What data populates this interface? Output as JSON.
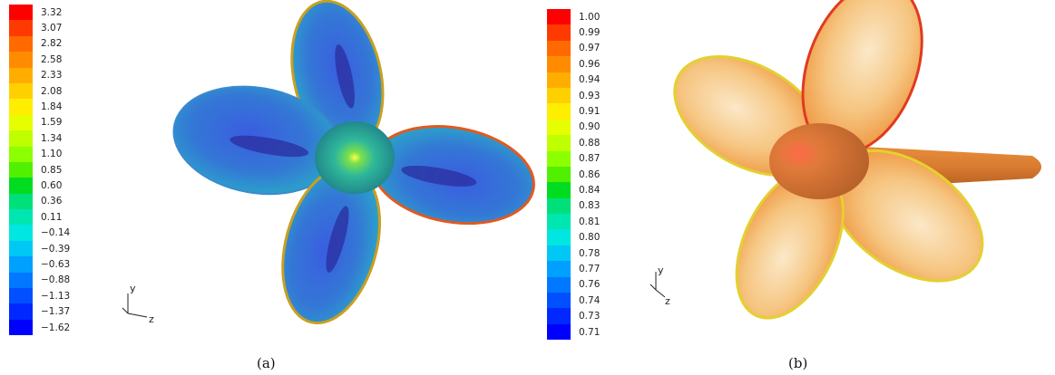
{
  "panels": [
    {
      "caption": "(a)",
      "axis": {
        "y": "y",
        "z": "z"
      },
      "colorbar": [
        {
          "label": "3.32",
          "color": "#ff0000"
        },
        {
          "label": "3.07",
          "color": "#ff3a00"
        },
        {
          "label": "2.82",
          "color": "#ff6a00"
        },
        {
          "label": "2.58",
          "color": "#ff8c00"
        },
        {
          "label": "2.33",
          "color": "#ffae00"
        },
        {
          "label": "2.08",
          "color": "#ffd000"
        },
        {
          "label": "1.84",
          "color": "#ffee00"
        },
        {
          "label": "1.59",
          "color": "#e6ff00"
        },
        {
          "label": "1.34",
          "color": "#bfff00"
        },
        {
          "label": "1.10",
          "color": "#8cff00"
        },
        {
          "label": "0.85",
          "color": "#50f000"
        },
        {
          "label": "0.60",
          "color": "#00dd20"
        },
        {
          "label": "0.36",
          "color": "#00e07a"
        },
        {
          "label": "0.11",
          "color": "#00e6b0"
        },
        {
          "label": "−0.14",
          "color": "#00e6e0"
        },
        {
          "label": "−0.39",
          "color": "#00c8f5"
        },
        {
          "label": "−0.63",
          "color": "#00a0ff"
        },
        {
          "label": "−0.88",
          "color": "#0078ff"
        },
        {
          "label": "−1.13",
          "color": "#0050ff"
        },
        {
          "label": "−1.37",
          "color": "#0028ff"
        },
        {
          "label": "−1.62",
          "color": "#0000ff"
        }
      ]
    },
    {
      "caption": "(b)",
      "axis": {
        "y": "y",
        "z": "z"
      },
      "colorbar": [
        {
          "label": "1.00",
          "color": "#ff0000"
        },
        {
          "label": "0.99",
          "color": "#ff3a00"
        },
        {
          "label": "0.97",
          "color": "#ff6a00"
        },
        {
          "label": "0.96",
          "color": "#ff8c00"
        },
        {
          "label": "0.94",
          "color": "#ffae00"
        },
        {
          "label": "0.93",
          "color": "#ffd000"
        },
        {
          "label": "0.91",
          "color": "#ffee00"
        },
        {
          "label": "0.90",
          "color": "#e6ff00"
        },
        {
          "label": "0.88",
          "color": "#bfff00"
        },
        {
          "label": "0.87",
          "color": "#8cff00"
        },
        {
          "label": "0.86",
          "color": "#50f000"
        },
        {
          "label": "0.84",
          "color": "#00dd20"
        },
        {
          "label": "0.83",
          "color": "#00e07a"
        },
        {
          "label": "0.81",
          "color": "#00e6b0"
        },
        {
          "label": "0.80",
          "color": "#00e6e0"
        },
        {
          "label": "0.78",
          "color": "#00c8f5"
        },
        {
          "label": "0.77",
          "color": "#00a0ff"
        },
        {
          "label": "0.76",
          "color": "#0078ff"
        },
        {
          "label": "0.74",
          "color": "#0050ff"
        },
        {
          "label": "0.73",
          "color": "#0028ff"
        },
        {
          "label": "0.71",
          "color": "#0000ff"
        }
      ]
    }
  ]
}
